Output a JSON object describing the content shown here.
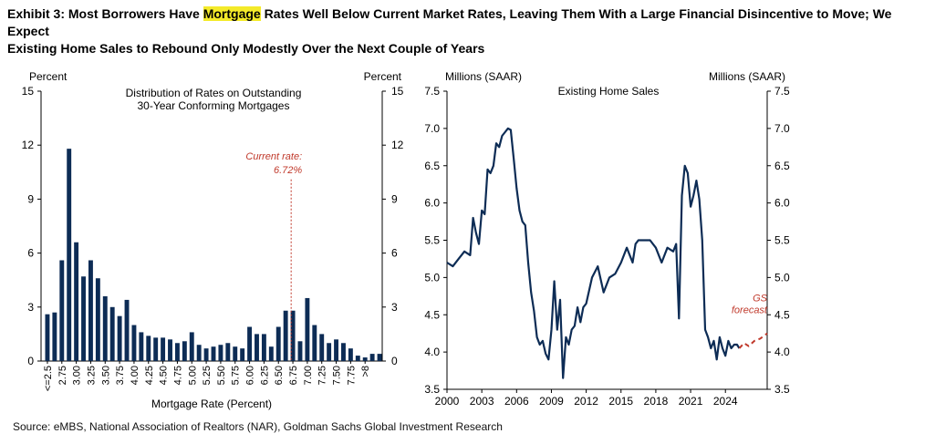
{
  "title": {
    "line1_pre": "Exhibit 3: Most Borrowers Have ",
    "line1_hl": "Mortgage",
    "line1_post": " Rates Well Below Current Market Rates, Leaving Them With a Large Financial Disincentive to Move; We Expect",
    "line2": "Existing Home Sales to Rebound Only Modestly Over the Next Couple of Years"
  },
  "source": "Source: eMBS, National Association of Realtors (NAR), Goldman Sachs Global Investment Research",
  "colors": {
    "bar": "#0d2c55",
    "line": "#0d2c55",
    "current_rate": "#c0392b",
    "forecast": "#c0392b"
  },
  "chart_data": [
    {
      "type": "bar",
      "title": "Distribution of Rates on Outstanding 30-Year Conforming Mortgages",
      "title_lines": [
        "Distribution of Rates on Outstanding",
        "30-Year Conforming Mortgages"
      ],
      "ylabel_left": "Percent",
      "ylabel_right": "Percent",
      "xlabel": "Mortgage Rate (Percent)",
      "ylim": [
        0,
        15
      ],
      "yticks": [
        "0",
        "3",
        "6",
        "9",
        "12",
        "15"
      ],
      "labeled_ticks": [
        "<=2.5",
        "2.75",
        "3.00",
        "3.25",
        "3.50",
        "3.75",
        "4.00",
        "4.25",
        "4.50",
        "4.75",
        "5.00",
        "5.25",
        "5.50",
        "5.75",
        "6.00",
        "6.25",
        "6.50",
        "6.75",
        "7.00",
        "7.25",
        "7.50",
        "7.75",
        ">8"
      ],
      "bin_width": 0.125,
      "values": [
        2.6,
        2.7,
        5.6,
        11.8,
        6.6,
        4.7,
        5.6,
        4.6,
        3.6,
        3.0,
        2.5,
        3.4,
        2.0,
        1.6,
        1.4,
        1.3,
        1.3,
        1.2,
        1.0,
        1.1,
        1.6,
        0.9,
        0.7,
        0.8,
        0.9,
        1.0,
        0.8,
        0.7,
        1.9,
        1.5,
        1.5,
        0.8,
        1.9,
        2.8,
        2.8,
        1.1,
        3.5,
        2.0,
        1.5,
        1.0,
        1.2,
        1.0,
        0.7,
        0.3,
        0.2,
        0.4,
        0.4
      ],
      "annotation": {
        "lines": [
          "Current rate:",
          "6.72%"
        ],
        "x": 6.72
      }
    },
    {
      "type": "line",
      "title": "Existing Home Sales",
      "ylabel_left": "Millions (SAAR)",
      "ylabel_right": "Millions (SAAR)",
      "ylim": [
        3.5,
        7.5
      ],
      "yticks": [
        "3.5",
        "4.0",
        "4.5",
        "5.0",
        "5.5",
        "6.0",
        "6.5",
        "7.0",
        "7.5"
      ],
      "xlim": [
        2000,
        2027.6
      ],
      "xticks": [
        "2000",
        "2003",
        "2006",
        "2009",
        "2012",
        "2015",
        "2018",
        "2021",
        "2024"
      ],
      "series": [
        {
          "x": [
            2000.0,
            2000.5,
            2001.0,
            2001.5,
            2002.0,
            2002.25,
            2002.5,
            2002.75,
            2003.0,
            2003.25,
            2003.5,
            2003.75,
            2004.0,
            2004.25,
            2004.5,
            2004.75,
            2005.0,
            2005.25,
            2005.5,
            2005.75,
            2006.0,
            2006.25,
            2006.5,
            2006.75,
            2007.0,
            2007.25,
            2007.5,
            2007.75,
            2008.0,
            2008.25,
            2008.5,
            2008.75,
            2009.0,
            2009.25,
            2009.5,
            2009.75,
            2010.0,
            2010.25,
            2010.5,
            2010.75,
            2011.0,
            2011.25,
            2011.5,
            2011.75,
            2012.0,
            2012.5,
            2013.0,
            2013.5,
            2014.0,
            2014.5,
            2015.0,
            2015.5,
            2016.0,
            2016.25,
            2016.5,
            2017.0,
            2017.5,
            2018.0,
            2018.5,
            2019.0,
            2019.5,
            2019.75,
            2020.0,
            2020.25,
            2020.5,
            2020.75,
            2021.0,
            2021.25,
            2021.5,
            2021.75,
            2022.0,
            2022.25,
            2022.5,
            2022.75,
            2023.0,
            2023.25,
            2023.5,
            2023.75,
            2024.0,
            2024.25,
            2024.5,
            2024.75,
            2025.0,
            2025.2
          ],
          "y": [
            5.2,
            5.15,
            5.25,
            5.35,
            5.3,
            5.8,
            5.6,
            5.45,
            5.9,
            5.85,
            6.45,
            6.4,
            6.5,
            6.8,
            6.75,
            6.9,
            6.95,
            7.0,
            6.98,
            6.6,
            6.2,
            5.9,
            5.75,
            5.7,
            5.2,
            4.8,
            4.55,
            4.2,
            4.1,
            4.15,
            3.98,
            3.9,
            4.3,
            4.95,
            4.3,
            4.7,
            3.65,
            4.2,
            4.1,
            4.3,
            4.35,
            4.6,
            4.4,
            4.6,
            4.65,
            5.0,
            5.15,
            4.8,
            5.0,
            5.05,
            5.2,
            5.4,
            5.2,
            5.45,
            5.5,
            5.5,
            5.5,
            5.4,
            5.2,
            5.4,
            5.35,
            5.45,
            4.45,
            6.1,
            6.5,
            6.4,
            5.95,
            6.1,
            6.3,
            6.05,
            5.5,
            4.3,
            4.2,
            4.05,
            4.15,
            3.9,
            4.2,
            4.05,
            3.95,
            4.15,
            4.05,
            4.1,
            4.1,
            4.05
          ]
        },
        {
          "name": "GS forecast",
          "x": [
            2025.2,
            2025.6,
            2026.0,
            2026.5,
            2027.0,
            2027.6
          ],
          "y": [
            4.05,
            4.12,
            4.08,
            4.15,
            4.18,
            4.25
          ],
          "style": "dashed"
        }
      ],
      "annotation": {
        "lines": [
          "GS",
          "forecast"
        ]
      }
    }
  ]
}
